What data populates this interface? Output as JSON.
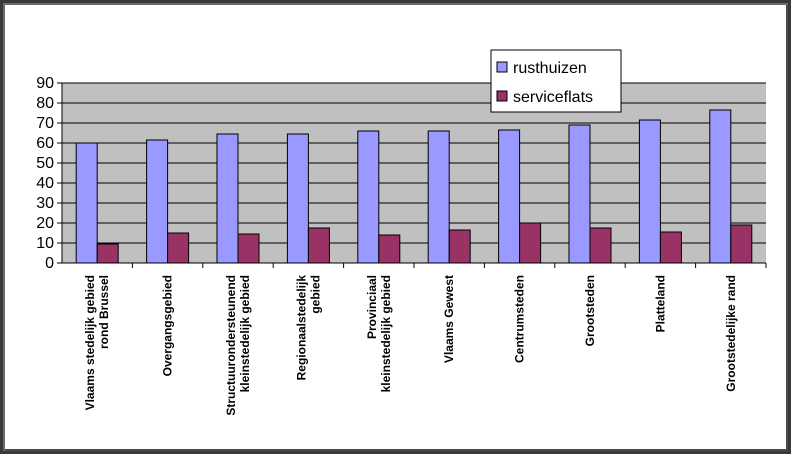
{
  "chart_data": {
    "type": "bar",
    "title": "",
    "xlabel": "",
    "ylabel": "",
    "categories": [
      [
        "Vlaams stedelijk gebied",
        "rond Brussel"
      ],
      [
        "Overgangsgebied"
      ],
      [
        "Structuurondersteunend",
        "kleinstedelijk gebied"
      ],
      [
        "Regionaalstedelijk",
        "gebied"
      ],
      [
        "Provinciaal",
        "kleinstedelijk gebied"
      ],
      [
        "Vlaams Gewest"
      ],
      [
        "Centrumsteden"
      ],
      [
        "Grootsteden"
      ],
      [
        "Platteland"
      ],
      [
        "Grootstedelijke rand"
      ]
    ],
    "series": [
      {
        "name": "rusthuizen",
        "color": "#9999ff",
        "values": [
          60,
          61.5,
          64.5,
          64.5,
          66,
          66,
          66.5,
          69,
          71.5,
          76.5
        ]
      },
      {
        "name": "serviceflats",
        "color": "#993366",
        "values": [
          9.5,
          15,
          14.5,
          17.5,
          14,
          16.5,
          20,
          17.5,
          15.5,
          19
        ]
      }
    ],
    "ylim": [
      0,
      90
    ],
    "yticks": [
      0,
      10,
      20,
      30,
      40,
      50,
      60,
      70,
      80,
      90
    ],
    "plot_background": "#c0c0c0",
    "grid": true,
    "legend_position": "top-right"
  }
}
